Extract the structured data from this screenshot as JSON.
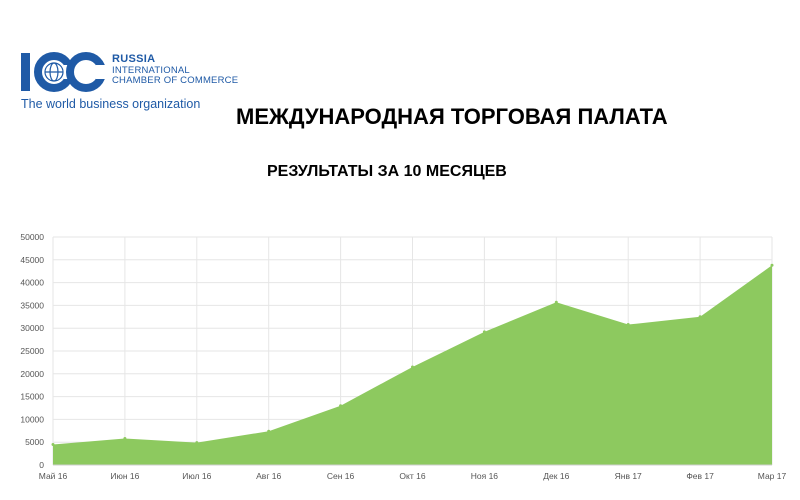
{
  "logo": {
    "mark_text": "ICC",
    "line1": "RUSSIA",
    "line2": "INTERNATIONAL",
    "line3": "CHAMBER OF COMMERCE",
    "tagline": "The world business organization",
    "color": "#1f5aa6"
  },
  "header": {
    "title": "МЕЖДУНАРОДНАЯ ТОРГОВАЯ ПАЛАТА",
    "subtitle": "РЕЗУЛЬТАТЫ ЗА 10 МЕСЯЦЕВ"
  },
  "chart_data": {
    "type": "area",
    "categories": [
      "Май 16",
      "Июн 16",
      "Июл 16",
      "Авг 16",
      "Сен 16",
      "Окт 16",
      "Ноя 16",
      "Дек 16",
      "Янв 17",
      "Фев 17",
      "Мар 17"
    ],
    "values": [
      4500,
      5800,
      4900,
      7400,
      13000,
      21500,
      29200,
      35700,
      30800,
      32500,
      43800
    ],
    "ylim": [
      0,
      50000
    ],
    "yticks": [
      0,
      5000,
      10000,
      15000,
      20000,
      25000,
      30000,
      35000,
      40000,
      45000,
      50000
    ],
    "ytick_labels": [
      "0",
      "5000",
      "10000",
      "15000",
      "20000",
      "25000",
      "30000",
      "35000",
      "40000",
      "45000",
      "50000"
    ],
    "grid": true,
    "legend": "none",
    "fill_color": "#8dc95f",
    "title": "",
    "xlabel": "",
    "ylabel": ""
  }
}
